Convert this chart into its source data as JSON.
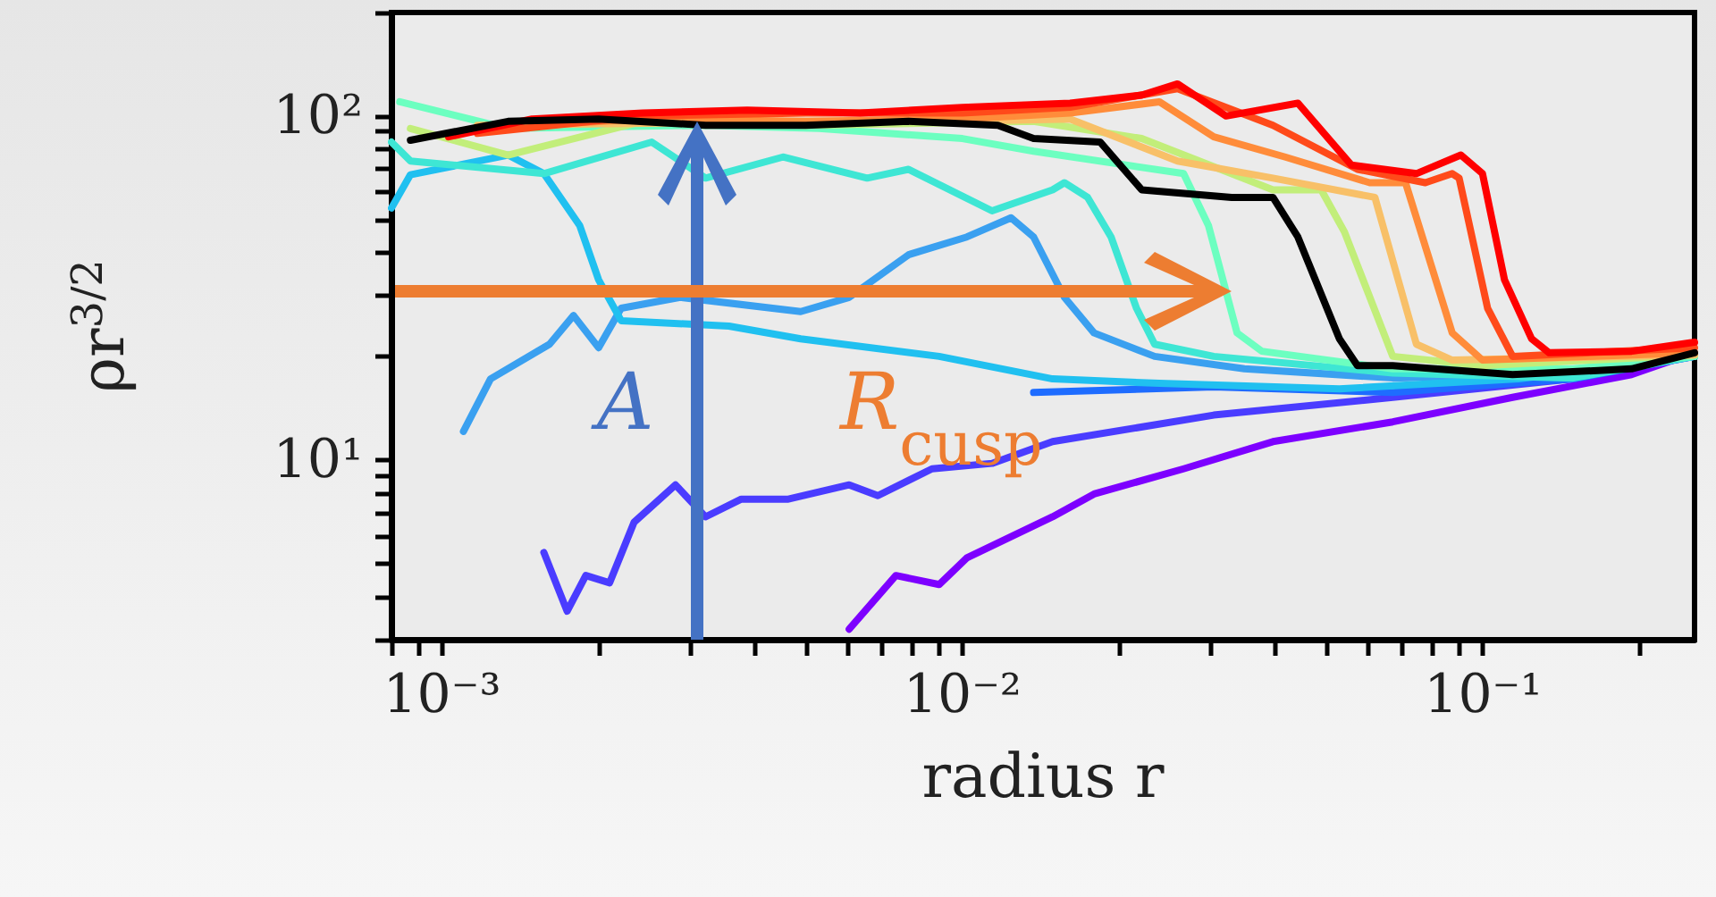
{
  "chart_data": {
    "type": "line",
    "xlabel": "radius r",
    "ylabel": "ρr$^{3/2}$",
    "log": "xy",
    "grid": false,
    "line_style": "solid",
    "xlim": [
      0.0008,
      0.255
    ],
    "ylim": [
      3,
      200
    ],
    "xticks": [
      {
        "value": 0.0008,
        "label": null
      },
      {
        "value": 0.0009,
        "label": null
      },
      {
        "value": 0.001,
        "label": "10⁻³"
      },
      {
        "value": 0.002,
        "label": null
      },
      {
        "value": 0.003,
        "label": null
      },
      {
        "value": 0.004,
        "label": null
      },
      {
        "value": 0.005,
        "label": null
      },
      {
        "value": 0.006,
        "label": null
      },
      {
        "value": 0.007,
        "label": null
      },
      {
        "value": 0.008,
        "label": null
      },
      {
        "value": 0.009,
        "label": null
      },
      {
        "value": 0.01,
        "label": "10⁻²"
      },
      {
        "value": 0.02,
        "label": null
      },
      {
        "value": 0.03,
        "label": null
      },
      {
        "value": 0.04,
        "label": null
      },
      {
        "value": 0.05,
        "label": null
      },
      {
        "value": 0.06,
        "label": null
      },
      {
        "value": 0.07,
        "label": null
      },
      {
        "value": 0.08,
        "label": null
      },
      {
        "value": 0.09,
        "label": null
      },
      {
        "value": 0.1,
        "label": "10⁻¹"
      },
      {
        "value": 0.2,
        "label": null
      }
    ],
    "yticks": [
      {
        "value": 3,
        "label": null
      },
      {
        "value": 4,
        "label": null
      },
      {
        "value": 5,
        "label": null
      },
      {
        "value": 6,
        "label": null
      },
      {
        "value": 7,
        "label": null
      },
      {
        "value": 8,
        "label": null
      },
      {
        "value": 9,
        "label": null
      },
      {
        "value": 10,
        "label": "10¹"
      },
      {
        "value": 20,
        "label": null
      },
      {
        "value": 30,
        "label": null
      },
      {
        "value": 40,
        "label": null
      },
      {
        "value": 50,
        "label": null
      },
      {
        "value": 60,
        "label": null
      },
      {
        "value": 70,
        "label": null
      },
      {
        "value": 80,
        "label": null
      },
      {
        "value": 90,
        "label": null
      },
      {
        "value": 100,
        "label": "10²"
      },
      {
        "value": 200,
        "label": null
      }
    ],
    "annotations": [
      "A",
      "R$_{cusp}$"
    ],
    "series": [
      {
        "color": "#7d00ff",
        "x": [
          0.00606,
          0.00745,
          0.00902,
          0.0102,
          0.0149,
          0.0179,
          0.0266,
          0.0395,
          0.0671,
          0.114,
          0.193,
          0.255
        ],
        "values": [
          3.22,
          4.61,
          4.34,
          5.19,
          6.83,
          7.96,
          9.42,
          11.3,
          12.9,
          15.2,
          17.7,
          20.5
        ]
      },
      {
        "color": "#4a3cff",
        "x": [
          0.00157,
          0.00174,
          0.00189,
          0.0021,
          0.00234,
          0.00281,
          0.00321,
          0.00376,
          0.00463,
          0.00606,
          0.00688,
          0.00874,
          0.0114,
          0.0149,
          0.0304,
          0.0671,
          0.149,
          0.255
        ],
        "values": [
          5.38,
          3.63,
          4.61,
          4.39,
          6.59,
          8.46,
          6.83,
          7.69,
          7.69,
          8.46,
          7.87,
          9.42,
          9.77,
          11.3,
          13.5,
          15.2,
          17.2,
          20
        ]
      },
      {
        "color": "#1e6cff",
        "x": [
          0.0137,
          0.0304,
          0.0671,
          0.149,
          0.255
        ],
        "values": [
          15.7,
          16.3,
          15.7,
          17.2,
          20
        ]
      },
      {
        "color": "#3aa0f0",
        "x": [
          0.0011,
          0.00124,
          0.00161,
          0.00179,
          0.002,
          0.00221,
          0.00287,
          0.00489,
          0.00606,
          0.00788,
          0.0102,
          0.0124,
          0.0137,
          0.0157,
          0.0179,
          0.0234,
          0.0348,
          0.0671,
          0.149,
          0.255
        ],
        "values": [
          12.1,
          17.2,
          21.7,
          26.3,
          21.2,
          27.6,
          29.7,
          27,
          29.7,
          39.5,
          44.5,
          50.6,
          44.5,
          29.7,
          23.4,
          20,
          18.4,
          17.3,
          17.9,
          20
        ]
      },
      {
        "color": "#20c0f0",
        "x": [
          0.0008,
          0.00087,
          0.00134,
          0.00157,
          0.00184,
          0.002,
          0.00221,
          0.00356,
          0.00489,
          0.00902,
          0.0149,
          0.0239,
          0.053,
          0.117,
          0.255
        ],
        "values": [
          54,
          67.5,
          77,
          68,
          48,
          33.4,
          25.4,
          24.5,
          22.5,
          20,
          17.2,
          16.7,
          16.1,
          17.2,
          20
        ]
      },
      {
        "color": "#3ee6d4",
        "x": [
          0.0008,
          0.00087,
          0.00157,
          0.00253,
          0.00321,
          0.00452,
          0.00656,
          0.00788,
          0.0114,
          0.0149,
          0.0157,
          0.0174,
          0.0193,
          0.0216,
          0.0234,
          0.0304,
          0.0671,
          0.149,
          0.255
        ],
        "values": [
          84,
          74,
          68,
          84,
          66,
          76,
          66,
          70,
          53,
          61,
          64,
          58,
          44.5,
          27.6,
          21.7,
          20,
          17.9,
          17.3,
          20
        ]
      },
      {
        "color": "#6cffc0",
        "x": [
          0.00083,
          0.00134,
          0.00321,
          0.0053,
          0.01,
          0.0137,
          0.0266,
          0.0297,
          0.0337,
          0.0376,
          0.0671,
          0.149,
          0.255
        ],
        "values": [
          110,
          92,
          94,
          92,
          86,
          79,
          68,
          48,
          23.4,
          20.7,
          18.4,
          18.4,
          20
        ]
      },
      {
        "color": "#c2ee7a",
        "x": [
          0.00087,
          0.00134,
          0.00243,
          0.005,
          0.0137,
          0.0221,
          0.0395,
          0.0489,
          0.0542,
          0.0671,
          0.0998,
          0.255
        ],
        "values": [
          92,
          77,
          96.5,
          94,
          96.5,
          86,
          61,
          61,
          46,
          20,
          18.8,
          20.2
        ]
      },
      {
        "color": "#f8c068",
        "x": [
          0.00117,
          0.005,
          0.01,
          0.0161,
          0.0259,
          0.0395,
          0.062,
          0.0745,
          0.0873,
          0.255
        ],
        "values": [
          94,
          96.5,
          96.5,
          98,
          74,
          66,
          58,
          21.7,
          19.5,
          20.2
        ]
      },
      {
        "color": "#ff8c3a",
        "x": [
          0.00117,
          0.00243,
          0.005,
          0.01,
          0.0161,
          0.0239,
          0.0304,
          0.0417,
          0.0606,
          0.071,
          0.0873,
          0.0998,
          0.255
        ],
        "values": [
          92,
          98,
          96.5,
          98,
          102,
          110,
          87,
          76,
          64,
          64,
          23.4,
          19.5,
          20.5
        ]
      },
      {
        "color": "#ff4a1a",
        "x": [
          0.00117,
          0.00243,
          0.005,
          0.01,
          0.0161,
          0.0259,
          0.0395,
          0.0574,
          0.0775,
          0.0873,
          0.09,
          0.1021,
          0.114,
          0.255
        ],
        "values": [
          89,
          100,
          102,
          102,
          106,
          120,
          94,
          70,
          64,
          68,
          66,
          27.6,
          20,
          21.2
        ]
      },
      {
        "color": "#ff0000",
        "x": [
          0.00103,
          0.00149,
          0.00243,
          0.00386,
          0.00636,
          0.01,
          0.0161,
          0.0221,
          0.0259,
          0.0321,
          0.0441,
          0.0559,
          0.0745,
          0.0907,
          0.0998,
          0.11,
          0.124,
          0.134,
          0.193,
          0.255
        ],
        "values": [
          87,
          98,
          102,
          104,
          102,
          106,
          109,
          115,
          124,
          100,
          109,
          72,
          68,
          77,
          68,
          33.4,
          22.5,
          20.5,
          20.7,
          22
        ]
      },
      {
        "color": "#000000",
        "x": [
          0.00087,
          0.00134,
          0.002,
          0.00321,
          0.005,
          0.00788,
          0.0117,
          0.0137,
          0.0184,
          0.0221,
          0.0329,
          0.0395,
          0.0441,
          0.053,
          0.0574,
          0.0671,
          0.114,
          0.193,
          0.255
        ],
        "values": [
          85,
          96.5,
          98,
          94,
          94,
          96.5,
          94,
          86,
          84,
          61,
          58,
          58,
          44.5,
          22.5,
          18.8,
          18.8,
          17.7,
          18.4,
          20.5
        ]
      }
    ]
  }
}
